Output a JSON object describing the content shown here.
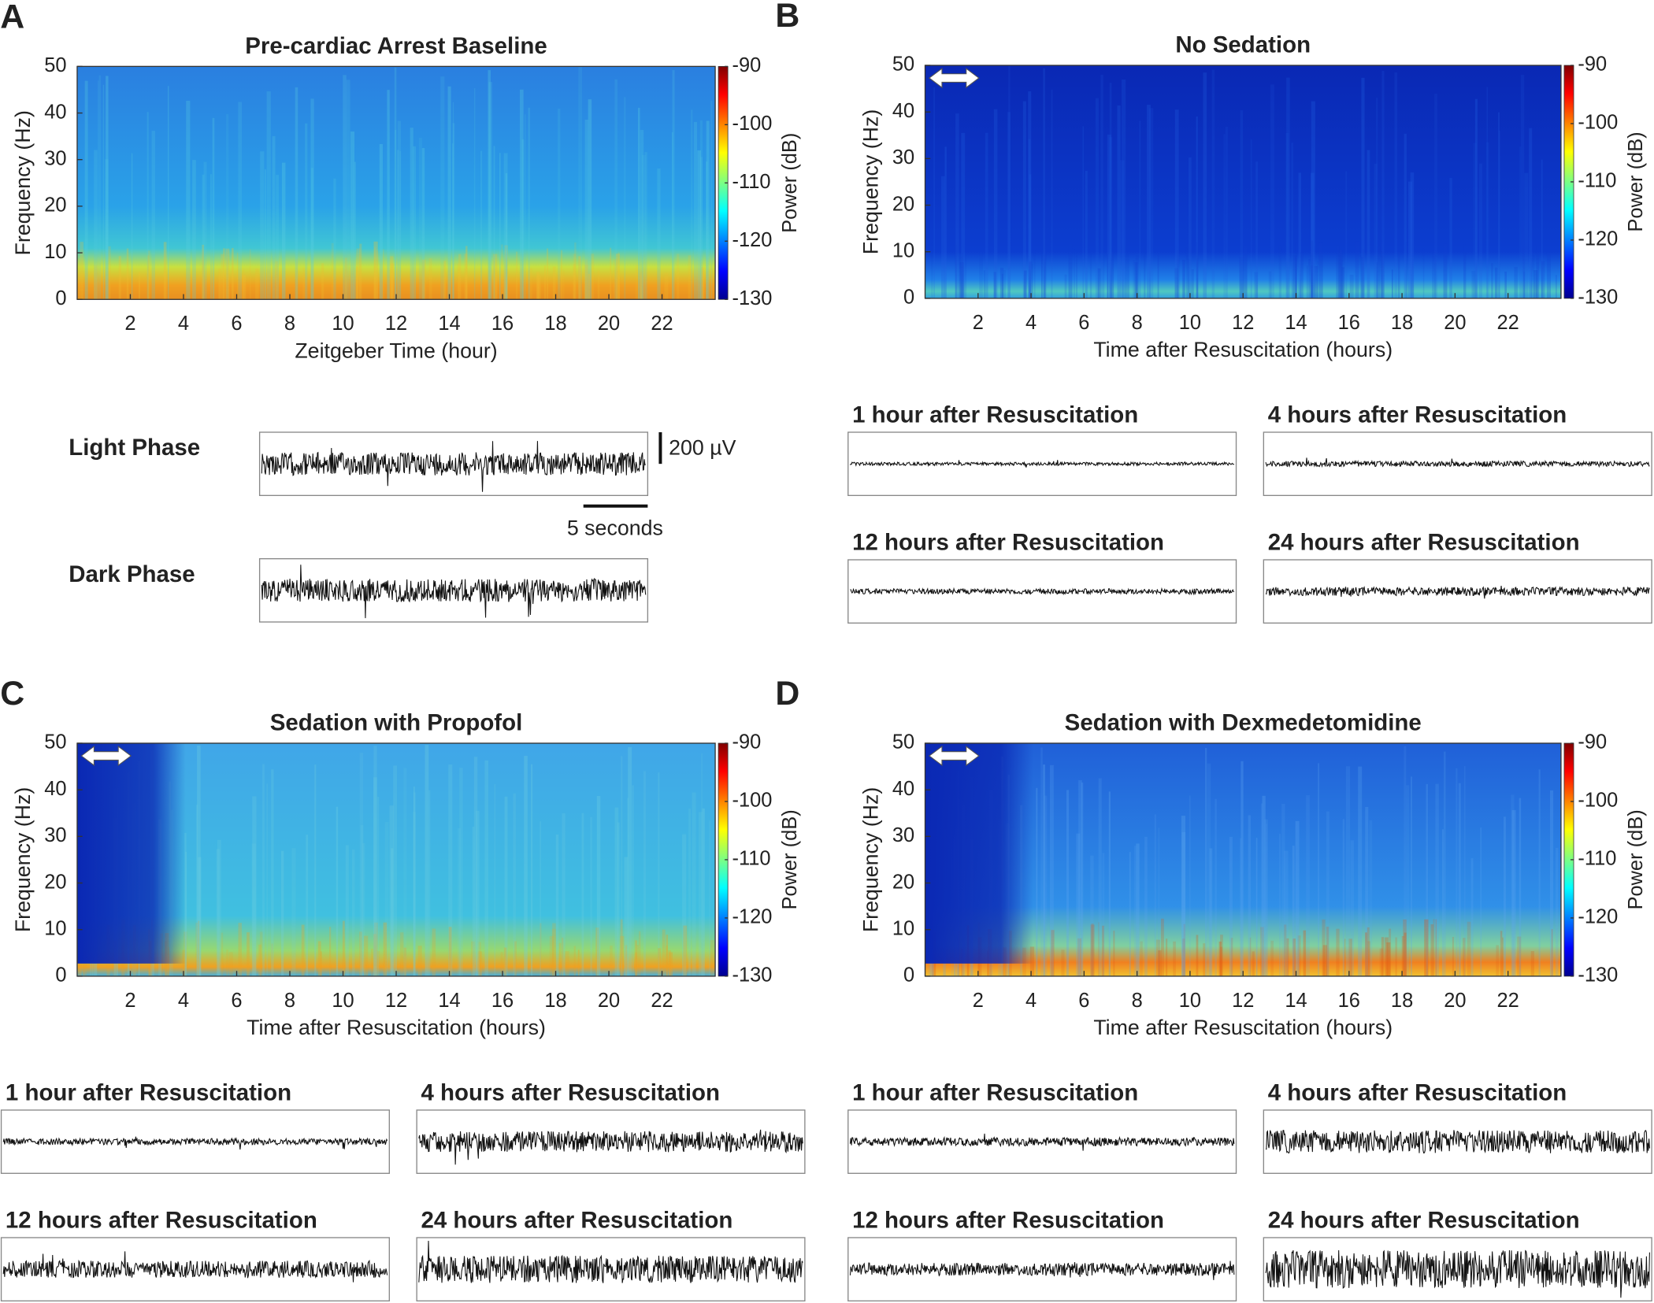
{
  "chart_data": [
    {
      "type": "spectrogram",
      "panel": "A",
      "title": "Pre-cardiac Arrest Baseline",
      "x_label": "Zeitgeber Time (hour)",
      "y_label": "Frequency (Hz)",
      "colorbar_label": "Power (dB)",
      "xlim": [
        0,
        24
      ],
      "xticks": [
        2,
        4,
        6,
        8,
        10,
        12,
        14,
        16,
        18,
        20,
        22
      ],
      "ylim": [
        0,
        50
      ],
      "yticks": [
        0,
        10,
        20,
        30,
        40,
        50
      ],
      "clim": [
        -130,
        -90
      ],
      "cticks": [
        -90,
        -100,
        -110,
        -120,
        -130
      ],
      "traces": [
        {
          "label": "Light Phase"
        },
        {
          "label": "Dark Phase"
        }
      ],
      "scale_bar": {
        "amplitude": "200 µV",
        "time": "5 seconds"
      }
    },
    {
      "type": "spectrogram",
      "panel": "B",
      "title": "No Sedation",
      "x_label": "Time after Resuscitation (hours)",
      "y_label": "Frequency (Hz)",
      "colorbar_label": "Power (dB)",
      "xlim": [
        0,
        24
      ],
      "xticks": [
        2,
        4,
        6,
        8,
        10,
        12,
        14,
        16,
        18,
        20,
        22
      ],
      "ylim": [
        0,
        50
      ],
      "yticks": [
        0,
        10,
        20,
        30,
        40,
        50
      ],
      "clim": [
        -130,
        -90
      ],
      "cticks": [
        -90,
        -100,
        -110,
        -120,
        -130
      ],
      "traces": [
        {
          "label": "1 hour after Resuscitation"
        },
        {
          "label": "4 hours after Resuscitation"
        },
        {
          "label": "12 hours after Resuscitation"
        },
        {
          "label": "24 hours after Resuscitation"
        }
      ]
    },
    {
      "type": "spectrogram",
      "panel": "C",
      "title": "Sedation with Propofol",
      "x_label": "Time after Resuscitation (hours)",
      "y_label": "Frequency (Hz)",
      "colorbar_label": "Power (dB)",
      "xlim": [
        0,
        24
      ],
      "xticks": [
        2,
        4,
        6,
        8,
        10,
        12,
        14,
        16,
        18,
        20,
        22
      ],
      "ylim": [
        0,
        50
      ],
      "yticks": [
        0,
        10,
        20,
        30,
        40,
        50
      ],
      "clim": [
        -130,
        -90
      ],
      "cticks": [
        -90,
        -100,
        -110,
        -120,
        -130
      ],
      "traces": [
        {
          "label": "1 hour after Resuscitation"
        },
        {
          "label": "4 hours after Resuscitation"
        },
        {
          "label": "12 hours after Resuscitation"
        },
        {
          "label": "24 hours after Resuscitation"
        }
      ]
    },
    {
      "type": "spectrogram",
      "panel": "D",
      "title": "Sedation with Dexmedetomidine",
      "x_label": "Time after Resuscitation (hours)",
      "y_label": "Frequency (Hz)",
      "colorbar_label": "Power (dB)",
      "xlim": [
        0,
        24
      ],
      "xticks": [
        2,
        4,
        6,
        8,
        10,
        12,
        14,
        16,
        18,
        20,
        22
      ],
      "ylim": [
        0,
        50
      ],
      "yticks": [
        0,
        10,
        20,
        30,
        40,
        50
      ],
      "clim": [
        -130,
        -90
      ],
      "cticks": [
        -90,
        -100,
        -110,
        -120,
        -130
      ],
      "traces": [
        {
          "label": "1 hour after Resuscitation"
        },
        {
          "label": "4 hours after Resuscitation"
        },
        {
          "label": "12 hours after Resuscitation"
        },
        {
          "label": "24 hours after Resuscitation"
        }
      ]
    }
  ]
}
